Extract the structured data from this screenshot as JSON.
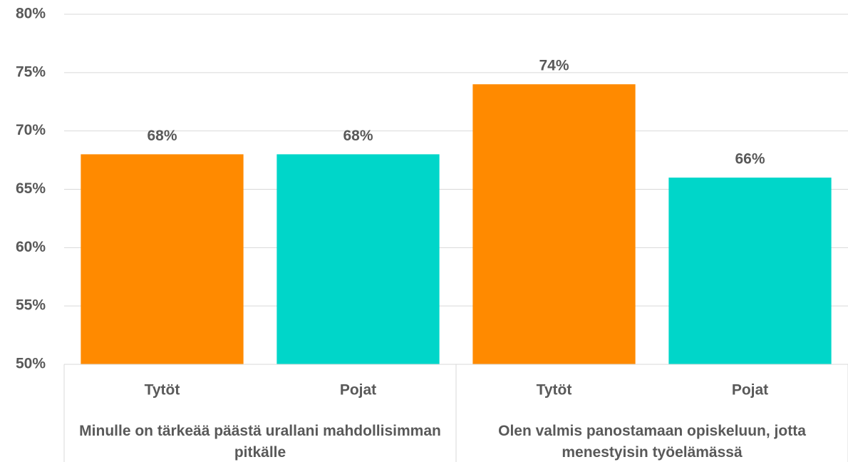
{
  "chart_data": {
    "type": "bar",
    "groups": [
      {
        "label": "Minulle on tärkeää päästä urallani mahdollisimman pitkälle",
        "categories": [
          "Tytöt",
          "Pojat"
        ],
        "values": [
          68,
          68
        ],
        "value_labels": [
          "68%",
          "68%"
        ]
      },
      {
        "label": "Olen valmis panostamaan opiskeluun, jotta menestyisin työelämässä",
        "categories": [
          "Tytöt",
          "Pojat"
        ],
        "values": [
          74,
          66
        ],
        "value_labels": [
          "74%",
          "66%"
        ]
      }
    ],
    "colors": [
      "#ff8a00",
      "#00d6c9"
    ],
    "ylim": [
      50,
      80
    ],
    "yticks": [
      {
        "value": 50,
        "label": "50%"
      },
      {
        "value": 55,
        "label": "55%"
      },
      {
        "value": 60,
        "label": "60%"
      },
      {
        "value": 65,
        "label": "65%"
      },
      {
        "value": 70,
        "label": "70%"
      },
      {
        "value": 75,
        "label": "75%"
      },
      {
        "value": 80,
        "label": "80%"
      }
    ],
    "grid": true
  }
}
